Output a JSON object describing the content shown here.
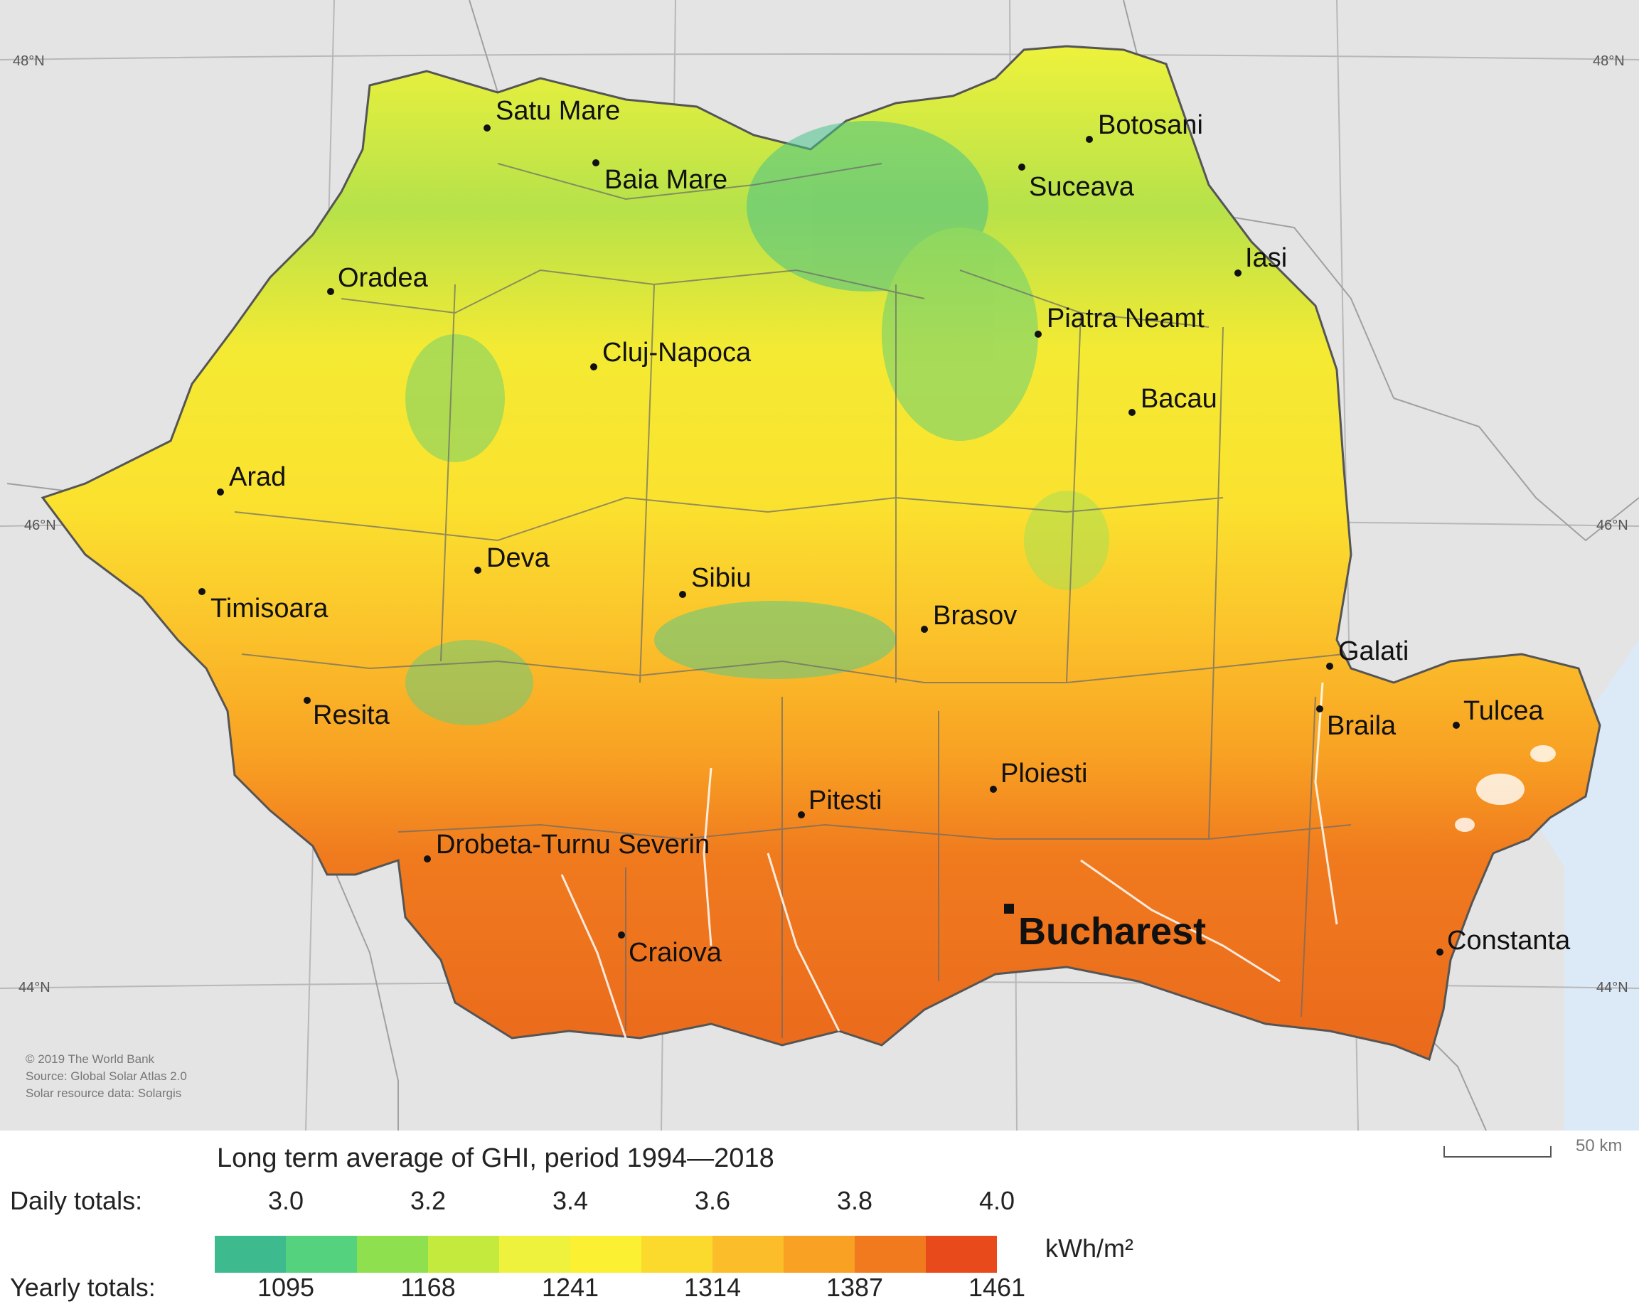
{
  "map": {
    "cities": [
      {
        "name": "Satu Mare"
      },
      {
        "name": "Baia Mare"
      },
      {
        "name": "Botosani"
      },
      {
        "name": "Suceava"
      },
      {
        "name": "Iasi"
      },
      {
        "name": "Oradea"
      },
      {
        "name": "Piatra Neamt"
      },
      {
        "name": "Cluj-Napoca"
      },
      {
        "name": "Bacau"
      },
      {
        "name": "Arad"
      },
      {
        "name": "Deva"
      },
      {
        "name": "Sibiu"
      },
      {
        "name": "Timisoara"
      },
      {
        "name": "Brasov"
      },
      {
        "name": "Galati"
      },
      {
        "name": "Resita"
      },
      {
        "name": "Braila"
      },
      {
        "name": "Tulcea"
      },
      {
        "name": "Ploiesti"
      },
      {
        "name": "Pitesti"
      },
      {
        "name": "Drobeta-Turnu Severin"
      },
      {
        "name": "Bucharest"
      },
      {
        "name": "Craiova"
      },
      {
        "name": "Constanta"
      }
    ],
    "latitude_labels": [
      "48°N",
      "46°N",
      "44°N"
    ],
    "credits": [
      "© 2019 The World Bank",
      "Source: Global Solar Atlas 2.0",
      "Solar resource data: Solargis"
    ],
    "scale_label": "50 km"
  },
  "legend": {
    "title": "Long term average of GHI, period 1994—2018",
    "daily_label": "Daily totals:",
    "yearly_label": "Yearly totals:",
    "daily_ticks": [
      "3.0",
      "3.2",
      "3.4",
      "3.6",
      "3.8",
      "4.0"
    ],
    "yearly_ticks": [
      "1095",
      "1168",
      "1241",
      "1314",
      "1387",
      "1461"
    ],
    "unit": "kWh/m²",
    "colors": [
      "#3dbb8f",
      "#55d27e",
      "#8fe04e",
      "#c3ea3c",
      "#eef23c",
      "#fbf031",
      "#fcda2d",
      "#fbbd2a",
      "#f8a123",
      "#f27a1e",
      "#e94a1b"
    ]
  }
}
